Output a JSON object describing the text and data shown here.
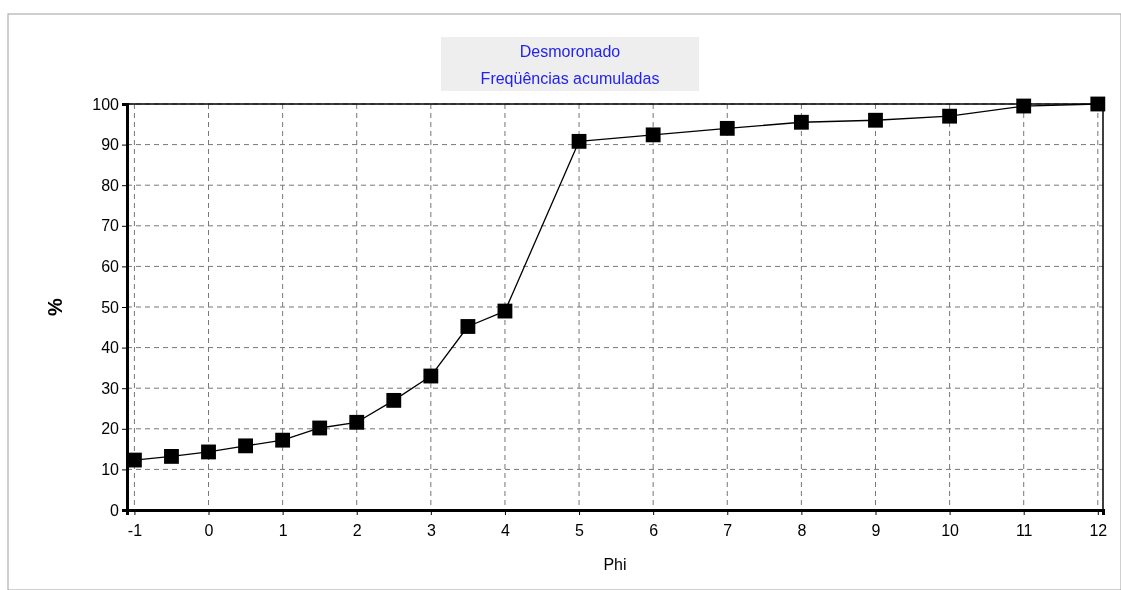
{
  "chart_data": {
    "type": "line",
    "title": "Desmoronado",
    "subtitle": "Freqüências acumuladas",
    "xlabel": "Phi",
    "ylabel": "%",
    "x": [
      -1,
      -0.5,
      0,
      0.5,
      1,
      1.5,
      2,
      2.5,
      3,
      3.5,
      4,
      5,
      6,
      7,
      8,
      9,
      10,
      11,
      12
    ],
    "series": [
      {
        "color": "#000000",
        "values": [
          12.3,
          13.2,
          14.3,
          15.8,
          17.2,
          20.2,
          21.6,
          27,
          33,
          45.2,
          49,
          90.8,
          92.4,
          94,
          95.5,
          96,
          97,
          99.5,
          100
        ]
      }
    ],
    "xlim": [
      -1.1,
      12.07
    ],
    "ylim": [
      0,
      100
    ],
    "xticks": [
      -1,
      0,
      1,
      2,
      3,
      4,
      5,
      6,
      7,
      8,
      9,
      10,
      11,
      12
    ],
    "yticks": [
      0,
      10,
      20,
      30,
      40,
      50,
      60,
      70,
      80,
      90,
      100
    ],
    "grid": true,
    "marker": "square",
    "line_style": "solid"
  }
}
